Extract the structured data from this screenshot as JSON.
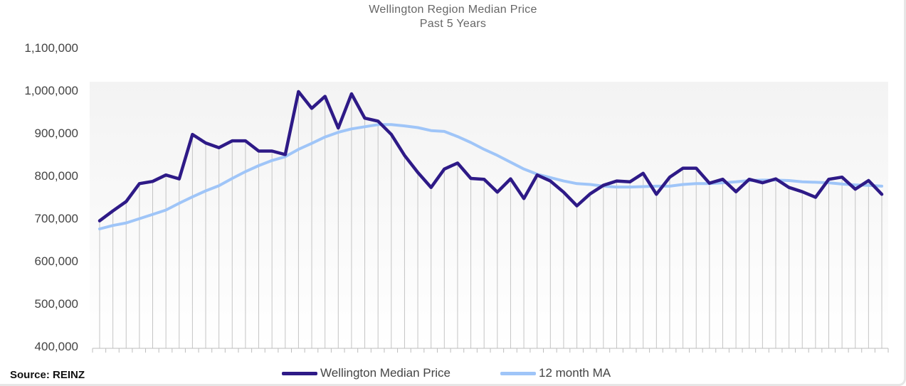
{
  "chart_data": {
    "type": "line",
    "title": "Wellington Region Median Price",
    "subtitle": "Past 5 Years",
    "xlabel": "",
    "ylabel": "",
    "ylim": [
      400000,
      1100000
    ],
    "y_ticks": [
      "1,100,000",
      "1,000,000",
      "900,000",
      "800,000",
      "700,000",
      "600,000",
      "500,000",
      "400,000"
    ],
    "grid": "vertical drop lines",
    "legend": "bottom",
    "series": [
      {
        "name": "Wellington Median Price",
        "color": "#2e1a87",
        "values": [
          695000,
          718000,
          740000,
          782000,
          787000,
          802000,
          793000,
          897000,
          877000,
          866000,
          882000,
          882000,
          858000,
          858000,
          850000,
          997000,
          958000,
          986000,
          912000,
          992000,
          935000,
          928000,
          897000,
          848000,
          808000,
          773000,
          816000,
          830000,
          794000,
          792000,
          762000,
          793000,
          747000,
          802000,
          788000,
          762000,
          730000,
          758000,
          778000,
          788000,
          786000,
          806000,
          757000,
          797000,
          818000,
          818000,
          783000,
          792000,
          763000,
          792000,
          784000,
          793000,
          773000,
          763000,
          750000,
          792000,
          797000,
          769000,
          789000,
          757000
        ]
      },
      {
        "name": "12 month MA",
        "color": "#9fc5f8",
        "values": [
          676000,
          684000,
          690000,
          700000,
          710000,
          720000,
          736000,
          751000,
          765000,
          777000,
          794000,
          810000,
          824000,
          836000,
          845000,
          862000,
          876000,
          891000,
          902000,
          910000,
          915000,
          920000,
          920000,
          917000,
          913000,
          906000,
          904000,
          892000,
          878000,
          862000,
          848000,
          832000,
          816000,
          804000,
          796000,
          788000,
          782000,
          780000,
          776000,
          774000,
          774000,
          775000,
          776000,
          776000,
          780000,
          782000,
          782000,
          784000,
          786000,
          789000,
          790000,
          790000,
          789000,
          786000,
          785000,
          784000,
          781000,
          779000,
          778000,
          776000
        ]
      }
    ]
  },
  "source": "Source: REINZ"
}
